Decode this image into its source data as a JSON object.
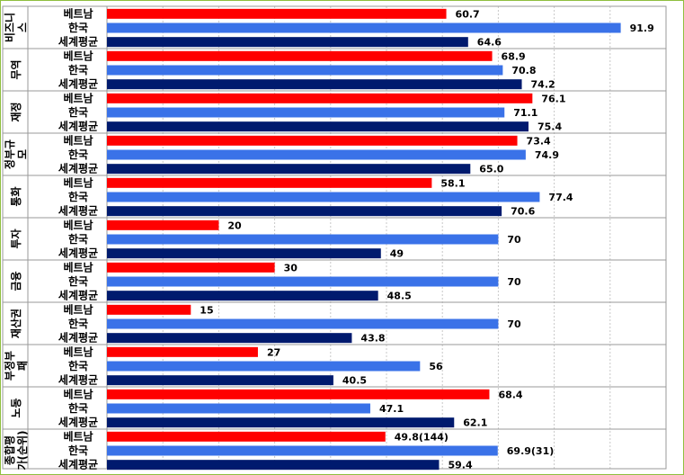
{
  "chart_data": {
    "type": "bar",
    "orientation": "horizontal",
    "title": "",
    "xlabel": "",
    "ylabel": "",
    "xlim": [
      0,
      100
    ],
    "grid": true,
    "legend": "none",
    "series_names": [
      "베트남",
      "한국",
      "세계평균"
    ],
    "colors": {
      "베트남": "#ff0000",
      "한국": "#3a72e8",
      "세계평균": "#001a6e"
    },
    "groups": [
      {
        "label": "비즈니스",
        "label_lines": [
          "비즈니",
          "스"
        ],
        "values": [
          60.7,
          91.9,
          64.6
        ],
        "labels": [
          "60.7",
          "91.9",
          "64.6"
        ]
      },
      {
        "label": "무역",
        "label_lines": [
          "무역"
        ],
        "values": [
          68.9,
          70.8,
          74.2
        ],
        "labels": [
          "68.9",
          "70.8",
          "74.2"
        ]
      },
      {
        "label": "재정",
        "label_lines": [
          "재정"
        ],
        "values": [
          76.1,
          71.1,
          75.4
        ],
        "labels": [
          "76.1",
          "71.1",
          "75.4"
        ]
      },
      {
        "label": "정부규모",
        "label_lines": [
          "정부규",
          "모"
        ],
        "values": [
          73.4,
          74.9,
          65.0
        ],
        "labels": [
          "73.4",
          "74.9",
          "65.0"
        ]
      },
      {
        "label": "통화",
        "label_lines": [
          "통화"
        ],
        "values": [
          58.1,
          77.4,
          70.6
        ],
        "labels": [
          "58.1",
          "77.4",
          "70.6"
        ]
      },
      {
        "label": "투자",
        "label_lines": [
          "투자"
        ],
        "values": [
          20,
          70,
          49
        ],
        "labels": [
          "20",
          "70",
          "49"
        ]
      },
      {
        "label": "금융",
        "label_lines": [
          "금융"
        ],
        "values": [
          30,
          70,
          48.5
        ],
        "labels": [
          "30",
          "70",
          "48.5"
        ]
      },
      {
        "label": "재산권",
        "label_lines": [
          "재산권"
        ],
        "values": [
          15,
          70,
          43.8
        ],
        "labels": [
          "15",
          "70",
          "43.8"
        ]
      },
      {
        "label": "부정부패",
        "label_lines": [
          "부정부",
          "패"
        ],
        "values": [
          27,
          56,
          40.5
        ],
        "labels": [
          "27",
          "56",
          "40.5"
        ]
      },
      {
        "label": "노동",
        "label_lines": [
          "노동"
        ],
        "values": [
          68.4,
          47.1,
          62.1
        ],
        "labels": [
          "68.4",
          "47.1",
          "62.1"
        ]
      },
      {
        "label": "종합평가(순위)",
        "label_lines": [
          "종합평",
          "가(순위)"
        ],
        "values": [
          49.8,
          69.9,
          59.4
        ],
        "labels": [
          "49.8(144)",
          "69.9(31)",
          "59.4"
        ]
      }
    ]
  }
}
